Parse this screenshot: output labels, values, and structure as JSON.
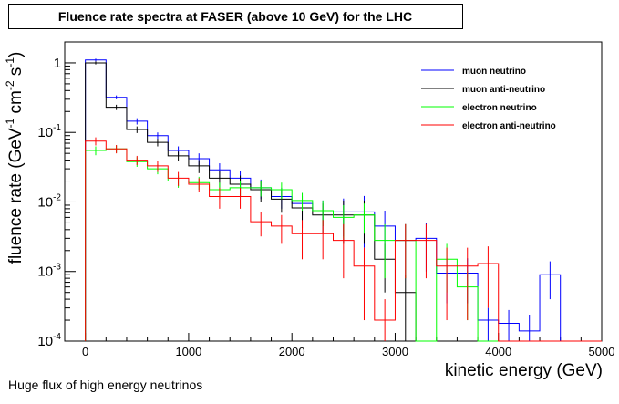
{
  "caption": "Huge flux of high energy neutrinos",
  "chart_data": {
    "type": "histogram",
    "title": "Fluence rate spectra at FASER (above 10 GeV) for the LHC",
    "xlabel": "kinetic energy (GeV)",
    "ylabel_parts": [
      "fluence rate (GeV",
      "-1",
      " cm",
      "-2",
      " s",
      "-1",
      ")"
    ],
    "xlim": [
      -200,
      5000
    ],
    "ylim": [
      0.0001,
      2
    ],
    "yscale": "log",
    "x_ticks": [
      0,
      1000,
      2000,
      3000,
      4000,
      5000
    ],
    "y_ticks": [
      {
        "value": 1,
        "base": "1",
        "exp": ""
      },
      {
        "value": 0.1,
        "base": "10",
        "exp": "-1"
      },
      {
        "value": 0.01,
        "base": "10",
        "exp": "-2"
      },
      {
        "value": 0.001,
        "base": "10",
        "exp": "-3"
      },
      {
        "value": 0.0001,
        "base": "10",
        "exp": "-4"
      }
    ],
    "grid": false,
    "legend_position": "top-right",
    "bin_edges": [
      0,
      200,
      400,
      600,
      800,
      1000,
      1200,
      1400,
      1600,
      1800,
      2000,
      2200,
      2400,
      2600,
      2800,
      3000,
      3200,
      3400,
      3600,
      3800,
      4000,
      4200,
      4400,
      4600,
      4800,
      5000
    ],
    "series": [
      {
        "name": "muon neutrino",
        "color": "#0000ff",
        "values": [
          1.1,
          0.32,
          0.145,
          0.09,
          0.055,
          0.042,
          0.029,
          0.022,
          0.016,
          0.012,
          0.0095,
          0.0075,
          0.0072,
          0.0072,
          0.0045,
          0.0028,
          0.003,
          0.00095,
          0.00095,
          0.0002,
          0.00018,
          0.00014,
          0.0009,
          0.0001,
          0.0001
        ],
        "errors": [
          0.05,
          0.02,
          0.015,
          0.01,
          0.008,
          0.008,
          0.007,
          0.006,
          0.005,
          0.004,
          0.004,
          0.003,
          0.004,
          0.005,
          0.003,
          0.002,
          0.002,
          0.0006,
          0.0006,
          0.0001,
          0.0001,
          0.0001,
          0.0005,
          0,
          0
        ]
      },
      {
        "name": "muon anti-neutrino",
        "color": "#000000",
        "values": [
          1.0,
          0.23,
          0.11,
          0.072,
          0.046,
          0.033,
          0.022,
          0.018,
          0.015,
          0.011,
          0.0082,
          0.0065,
          0.0065,
          0.0065,
          0.0015,
          0.0005,
          0.0001,
          0.0001,
          0.0001,
          0.0001,
          0.0001,
          0.0001,
          0.0001,
          0.0001,
          0.0001
        ],
        "errors": [
          0.05,
          0.02,
          0.012,
          0.009,
          0.007,
          0.007,
          0.006,
          0.006,
          0.005,
          0.004,
          0.004,
          0.003,
          0.004,
          0.004,
          0.001,
          0.0004,
          0,
          0,
          0,
          0,
          0,
          0,
          0,
          0,
          0
        ]
      },
      {
        "name": "electron neutrino",
        "color": "#00ff00",
        "values": [
          0.055,
          0.058,
          0.038,
          0.03,
          0.02,
          0.019,
          0.015,
          0.016,
          0.016,
          0.015,
          0.0105,
          0.0075,
          0.006,
          0.0065,
          0.0028,
          0.0028,
          0.0001,
          0.0015,
          0.0006,
          0.0001,
          0.0001,
          0.0001,
          0.0001,
          0.0001,
          0.0001
        ],
        "errors": [
          0.008,
          0.007,
          0.006,
          0.005,
          0.004,
          0.004,
          0.004,
          0.004,
          0.004,
          0.004,
          0.003,
          0.003,
          0.003,
          0.003,
          0.002,
          0.002,
          0,
          0.001,
          0.0004,
          0,
          0,
          0,
          0,
          0,
          0
        ]
      },
      {
        "name": "electron anti-neutrino",
        "color": "#ff0000",
        "values": [
          0.075,
          0.058,
          0.04,
          0.033,
          0.022,
          0.018,
          0.012,
          0.012,
          0.0052,
          0.0045,
          0.0035,
          0.0035,
          0.0028,
          0.0012,
          0.0002,
          0.0028,
          0.0028,
          0.0012,
          0.0012,
          0.0013,
          0.0001,
          0.0001,
          0.0001,
          0.0001,
          0.0001
        ],
        "errors": [
          0.01,
          0.008,
          0.006,
          0.006,
          0.005,
          0.004,
          0.004,
          0.004,
          0.002,
          0.002,
          0.002,
          0.002,
          0.002,
          0.001,
          0.0002,
          0.002,
          0.002,
          0.001,
          0.001,
          0.001,
          0,
          0,
          0,
          0,
          0
        ]
      }
    ]
  }
}
